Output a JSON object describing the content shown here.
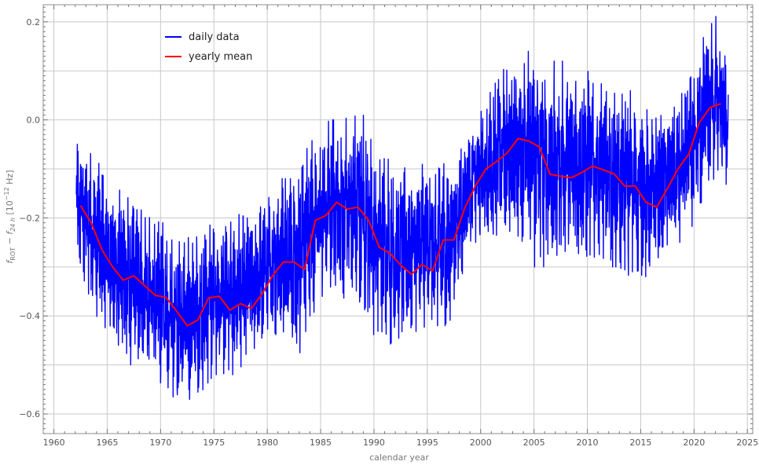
{
  "chart_data": {
    "type": "line",
    "title": "",
    "xlabel": "calendar year",
    "ylabel_parts": {
      "f": "f",
      "rot_sub": "ROT",
      "minus": " − ",
      "f2": "f",
      "sub24": "24 h",
      "bracket_open": " [10",
      "exp": "−12",
      "unit": " Hz]"
    },
    "xlim": [
      1959,
      2025.5
    ],
    "ylim": [
      -0.64,
      0.235
    ],
    "x_ticks": [
      1960,
      1965,
      1970,
      1975,
      1980,
      1985,
      1990,
      1995,
      2000,
      2005,
      2010,
      2015,
      2020,
      2025
    ],
    "x_tick_labels": [
      "1960",
      "1965",
      "1970",
      "1975",
      "1980",
      "1985",
      "1990",
      "1995",
      "2000",
      "2005",
      "2010",
      "2015",
      "2020",
      "2025"
    ],
    "y_ticks": [
      -0.6,
      -0.4,
      -0.2,
      0.0,
      0.2
    ],
    "y_tick_labels": [
      "−0.6",
      "−0.4",
      "−0.2",
      "0.0",
      "0.2"
    ],
    "y_grid": [
      -0.6,
      -0.5,
      -0.4,
      -0.3,
      -0.2,
      -0.1,
      0.0,
      0.1,
      0.2
    ],
    "grid": true,
    "legend": {
      "placement": "top-left",
      "entries": [
        {
          "name": "daily data",
          "color": "#0000ff"
        },
        {
          "name": "yearly mean",
          "color": "#ff0000"
        }
      ]
    },
    "series": [
      {
        "name": "daily data",
        "color": "#0000ff",
        "x_start": 1962.1,
        "x_end": 2023.2,
        "envelope": {
          "x": [
            1962.1,
            1963,
            1964,
            1965,
            1966,
            1967,
            1968,
            1969,
            1970,
            1971,
            1972,
            1973,
            1974,
            1975,
            1976,
            1977,
            1978,
            1979,
            1980,
            1981,
            1982,
            1983,
            1984,
            1985,
            1986,
            1987,
            1988,
            1989,
            1990,
            1991,
            1992,
            1993,
            1994,
            1995,
            1996,
            1997,
            1998,
            1999,
            2000,
            2001,
            2002,
            2003,
            2004,
            2005,
            2006,
            2007,
            2008,
            2009,
            2010,
            2011,
            2012,
            2013,
            2014,
            2015,
            2016,
            2017,
            2018,
            2019,
            2020,
            2021,
            2022,
            2023.2
          ],
          "low": [
            -0.3,
            -0.34,
            -0.4,
            -0.44,
            -0.47,
            -0.5,
            -0.5,
            -0.52,
            -0.55,
            -0.56,
            -0.59,
            -0.57,
            -0.55,
            -0.52,
            -0.52,
            -0.52,
            -0.49,
            -0.46,
            -0.43,
            -0.44,
            -0.45,
            -0.48,
            -0.4,
            -0.38,
            -0.34,
            -0.36,
            -0.38,
            -0.38,
            -0.44,
            -0.43,
            -0.48,
            -0.46,
            -0.43,
            -0.42,
            -0.42,
            -0.42,
            -0.34,
            -0.25,
            -0.25,
            -0.25,
            -0.22,
            -0.23,
            -0.25,
            -0.3,
            -0.3,
            -0.3,
            -0.3,
            -0.28,
            -0.28,
            -0.28,
            -0.3,
            -0.3,
            -0.32,
            -0.32,
            -0.32,
            -0.26,
            -0.25,
            -0.25,
            -0.21,
            -0.15,
            -0.14,
            -0.13
          ],
          "high": [
            -0.04,
            -0.06,
            -0.08,
            -0.12,
            -0.14,
            -0.16,
            -0.18,
            -0.2,
            -0.21,
            -0.21,
            -0.24,
            -0.24,
            -0.22,
            -0.2,
            -0.22,
            -0.2,
            -0.18,
            -0.2,
            -0.14,
            -0.12,
            -0.12,
            -0.08,
            -0.05,
            -0.01,
            0.0,
            0.0,
            0.01,
            0.01,
            -0.06,
            -0.08,
            -0.08,
            -0.1,
            -0.08,
            -0.1,
            -0.1,
            -0.08,
            -0.05,
            0.0,
            0.02,
            0.06,
            0.1,
            0.12,
            0.14,
            0.14,
            0.12,
            0.12,
            0.12,
            0.1,
            0.1,
            0.08,
            0.06,
            0.05,
            0.06,
            0.05,
            0.0,
            0.01,
            0.02,
            0.06,
            0.1,
            0.19,
            0.22,
            0.1
          ]
        }
      },
      {
        "name": "yearly mean",
        "color": "#ff0000",
        "x": [
          1962.5,
          1963.5,
          1964.5,
          1965.5,
          1966.5,
          1967.5,
          1968.5,
          1969.5,
          1970.5,
          1971.5,
          1972.5,
          1973.5,
          1974.5,
          1975.5,
          1976.5,
          1977.5,
          1978.5,
          1979.5,
          1980.5,
          1981.5,
          1982.5,
          1983.5,
          1984.5,
          1985.5,
          1986.5,
          1987.5,
          1988.5,
          1989.5,
          1990.5,
          1991.5,
          1992.5,
          1993.5,
          1994.5,
          1995.5,
          1996.5,
          1997.5,
          1998.5,
          1999.5,
          2000.5,
          2001.5,
          2002.5,
          2003.5,
          2004.5,
          2005.5,
          2006.5,
          2007.5,
          2008.5,
          2009.5,
          2010.5,
          2011.5,
          2012.5,
          2013.5,
          2014.5,
          2015.5,
          2016.5,
          2017.5,
          2018.5,
          2019.5,
          2020.5,
          2021.5,
          2022.5
        ],
        "values": [
          -0.175,
          -0.21,
          -0.265,
          -0.3,
          -0.327,
          -0.318,
          -0.338,
          -0.358,
          -0.362,
          -0.39,
          -0.42,
          -0.408,
          -0.363,
          -0.36,
          -0.388,
          -0.375,
          -0.385,
          -0.355,
          -0.318,
          -0.29,
          -0.29,
          -0.305,
          -0.205,
          -0.195,
          -0.168,
          -0.182,
          -0.178,
          -0.205,
          -0.26,
          -0.272,
          -0.296,
          -0.315,
          -0.295,
          -0.308,
          -0.245,
          -0.245,
          -0.18,
          -0.135,
          -0.1,
          -0.085,
          -0.067,
          -0.038,
          -0.043,
          -0.055,
          -0.111,
          -0.115,
          -0.118,
          -0.107,
          -0.094,
          -0.102,
          -0.11,
          -0.135,
          -0.135,
          -0.168,
          -0.178,
          -0.14,
          -0.1,
          -0.07,
          -0.005,
          0.025,
          0.033
        ]
      }
    ]
  }
}
